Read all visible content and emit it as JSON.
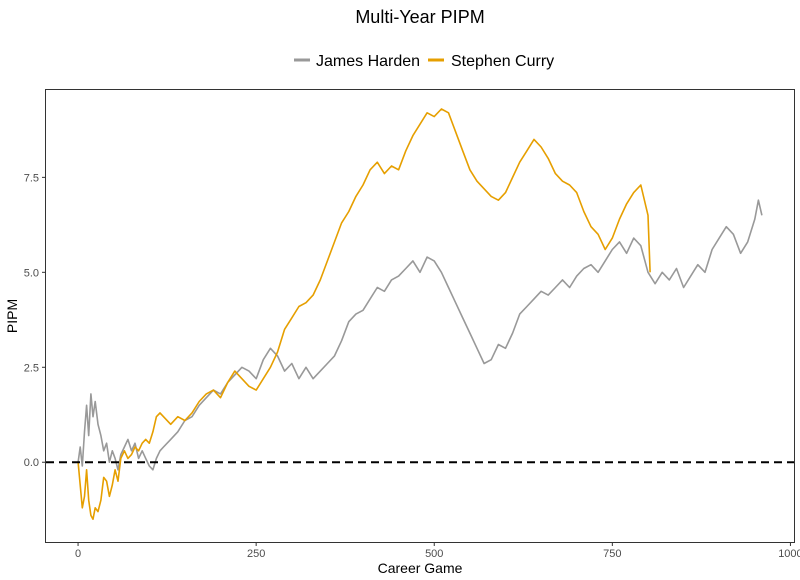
{
  "chart_data": {
    "type": "line",
    "title": "Multi-Year PIPM",
    "xlabel": "Career Game",
    "ylabel": "PIPM",
    "xlim": [
      -45,
      1005
    ],
    "ylim": [
      -2.1,
      9.8
    ],
    "xticks": [
      0,
      250,
      500,
      750,
      1000
    ],
    "xtick_labels": [
      "0",
      "250",
      "500",
      "750",
      "1000"
    ],
    "yticks": [
      0,
      2.5,
      5,
      7.5
    ],
    "ytick_labels": [
      "0.0",
      "2.5",
      "5.0",
      "7.5"
    ],
    "grid": false,
    "legend_position": "top",
    "reference_line": {
      "y": 0,
      "style": "dashed",
      "color": "#000000"
    },
    "series": [
      {
        "name": "James Harden",
        "color": "#999999",
        "points": [
          [
            0,
            0
          ],
          [
            3,
            0.4
          ],
          [
            6,
            -0.1
          ],
          [
            9,
            0.8
          ],
          [
            12,
            1.5
          ],
          [
            15,
            0.7
          ],
          [
            18,
            1.8
          ],
          [
            21,
            1.2
          ],
          [
            24,
            1.6
          ],
          [
            28,
            1.0
          ],
          [
            32,
            0.7
          ],
          [
            36,
            0.3
          ],
          [
            40,
            0.5
          ],
          [
            44,
            0.0
          ],
          [
            48,
            0.3
          ],
          [
            52,
            0.1
          ],
          [
            56,
            -0.2
          ],
          [
            60,
            0.2
          ],
          [
            65,
            0.4
          ],
          [
            70,
            0.6
          ],
          [
            75,
            0.3
          ],
          [
            80,
            0.5
          ],
          [
            85,
            0.1
          ],
          [
            90,
            0.3
          ],
          [
            95,
            0.1
          ],
          [
            100,
            -0.1
          ],
          [
            105,
            -0.2
          ],
          [
            110,
            0.1
          ],
          [
            115,
            0.3
          ],
          [
            120,
            0.4
          ],
          [
            130,
            0.6
          ],
          [
            140,
            0.8
          ],
          [
            150,
            1.1
          ],
          [
            160,
            1.2
          ],
          [
            170,
            1.5
          ],
          [
            180,
            1.7
          ],
          [
            190,
            1.9
          ],
          [
            200,
            1.8
          ],
          [
            210,
            2.1
          ],
          [
            220,
            2.3
          ],
          [
            230,
            2.5
          ],
          [
            240,
            2.4
          ],
          [
            250,
            2.2
          ],
          [
            260,
            2.7
          ],
          [
            270,
            3.0
          ],
          [
            280,
            2.8
          ],
          [
            290,
            2.4
          ],
          [
            300,
            2.6
          ],
          [
            310,
            2.2
          ],
          [
            320,
            2.5
          ],
          [
            330,
            2.2
          ],
          [
            340,
            2.4
          ],
          [
            350,
            2.6
          ],
          [
            360,
            2.8
          ],
          [
            370,
            3.2
          ],
          [
            380,
            3.7
          ],
          [
            390,
            3.9
          ],
          [
            400,
            4.0
          ],
          [
            410,
            4.3
          ],
          [
            420,
            4.6
          ],
          [
            430,
            4.5
          ],
          [
            440,
            4.8
          ],
          [
            450,
            4.9
          ],
          [
            460,
            5.1
          ],
          [
            470,
            5.3
          ],
          [
            480,
            5.0
          ],
          [
            490,
            5.4
          ],
          [
            500,
            5.3
          ],
          [
            510,
            5.0
          ],
          [
            520,
            4.6
          ],
          [
            530,
            4.2
          ],
          [
            540,
            3.8
          ],
          [
            550,
            3.4
          ],
          [
            560,
            3.0
          ],
          [
            570,
            2.6
          ],
          [
            580,
            2.7
          ],
          [
            590,
            3.1
          ],
          [
            600,
            3.0
          ],
          [
            610,
            3.4
          ],
          [
            620,
            3.9
          ],
          [
            630,
            4.1
          ],
          [
            640,
            4.3
          ],
          [
            650,
            4.5
          ],
          [
            660,
            4.4
          ],
          [
            670,
            4.6
          ],
          [
            680,
            4.8
          ],
          [
            690,
            4.6
          ],
          [
            700,
            4.9
          ],
          [
            710,
            5.1
          ],
          [
            720,
            5.2
          ],
          [
            730,
            5.0
          ],
          [
            740,
            5.3
          ],
          [
            750,
            5.6
          ],
          [
            760,
            5.8
          ],
          [
            770,
            5.5
          ],
          [
            780,
            5.9
          ],
          [
            790,
            5.7
          ],
          [
            800,
            5.0
          ],
          [
            810,
            4.7
          ],
          [
            820,
            5.0
          ],
          [
            830,
            4.8
          ],
          [
            840,
            5.1
          ],
          [
            850,
            4.6
          ],
          [
            860,
            4.9
          ],
          [
            870,
            5.2
          ],
          [
            880,
            5.0
          ],
          [
            890,
            5.6
          ],
          [
            900,
            5.9
          ],
          [
            910,
            6.2
          ],
          [
            920,
            6.0
          ],
          [
            930,
            5.5
          ],
          [
            940,
            5.8
          ],
          [
            950,
            6.4
          ],
          [
            955,
            6.9
          ],
          [
            960,
            6.5
          ]
        ]
      },
      {
        "name": "Stephen Curry",
        "color": "#E69F00",
        "points": [
          [
            0,
            0
          ],
          [
            3,
            -0.6
          ],
          [
            6,
            -1.2
          ],
          [
            9,
            -0.9
          ],
          [
            12,
            -0.2
          ],
          [
            15,
            -1.0
          ],
          [
            18,
            -1.4
          ],
          [
            21,
            -1.5
          ],
          [
            24,
            -1.2
          ],
          [
            28,
            -1.3
          ],
          [
            32,
            -1.0
          ],
          [
            36,
            -0.4
          ],
          [
            40,
            -0.5
          ],
          [
            44,
            -0.9
          ],
          [
            48,
            -0.6
          ],
          [
            52,
            -0.2
          ],
          [
            56,
            -0.5
          ],
          [
            60,
            0.1
          ],
          [
            65,
            0.3
          ],
          [
            70,
            0.1
          ],
          [
            75,
            0.2
          ],
          [
            80,
            0.4
          ],
          [
            85,
            0.3
          ],
          [
            90,
            0.5
          ],
          [
            95,
            0.6
          ],
          [
            100,
            0.5
          ],
          [
            105,
            0.8
          ],
          [
            110,
            1.2
          ],
          [
            115,
            1.3
          ],
          [
            120,
            1.2
          ],
          [
            130,
            1.0
          ],
          [
            140,
            1.2
          ],
          [
            150,
            1.1
          ],
          [
            160,
            1.3
          ],
          [
            170,
            1.6
          ],
          [
            180,
            1.8
          ],
          [
            190,
            1.9
          ],
          [
            200,
            1.7
          ],
          [
            210,
            2.1
          ],
          [
            220,
            2.4
          ],
          [
            230,
            2.2
          ],
          [
            240,
            2.0
          ],
          [
            250,
            1.9
          ],
          [
            260,
            2.2
          ],
          [
            270,
            2.5
          ],
          [
            280,
            2.9
          ],
          [
            290,
            3.5
          ],
          [
            300,
            3.8
          ],
          [
            310,
            4.1
          ],
          [
            320,
            4.2
          ],
          [
            330,
            4.4
          ],
          [
            340,
            4.8
          ],
          [
            350,
            5.3
          ],
          [
            360,
            5.8
          ],
          [
            370,
            6.3
          ],
          [
            380,
            6.6
          ],
          [
            390,
            7.0
          ],
          [
            400,
            7.3
          ],
          [
            410,
            7.7
          ],
          [
            420,
            7.9
          ],
          [
            430,
            7.6
          ],
          [
            440,
            7.8
          ],
          [
            450,
            7.7
          ],
          [
            460,
            8.2
          ],
          [
            470,
            8.6
          ],
          [
            480,
            8.9
          ],
          [
            490,
            9.2
          ],
          [
            500,
            9.1
          ],
          [
            510,
            9.3
          ],
          [
            520,
            9.2
          ],
          [
            530,
            8.7
          ],
          [
            540,
            8.2
          ],
          [
            550,
            7.7
          ],
          [
            560,
            7.4
          ],
          [
            570,
            7.2
          ],
          [
            580,
            7.0
          ],
          [
            590,
            6.9
          ],
          [
            600,
            7.1
          ],
          [
            610,
            7.5
          ],
          [
            620,
            7.9
          ],
          [
            630,
            8.2
          ],
          [
            640,
            8.5
          ],
          [
            650,
            8.3
          ],
          [
            660,
            8.0
          ],
          [
            670,
            7.6
          ],
          [
            680,
            7.4
          ],
          [
            690,
            7.3
          ],
          [
            700,
            7.1
          ],
          [
            710,
            6.6
          ],
          [
            720,
            6.2
          ],
          [
            730,
            6.0
          ],
          [
            740,
            5.6
          ],
          [
            750,
            5.9
          ],
          [
            760,
            6.4
          ],
          [
            770,
            6.8
          ],
          [
            780,
            7.1
          ],
          [
            790,
            7.3
          ],
          [
            800,
            6.5
          ],
          [
            803,
            5.0
          ]
        ]
      }
    ]
  }
}
